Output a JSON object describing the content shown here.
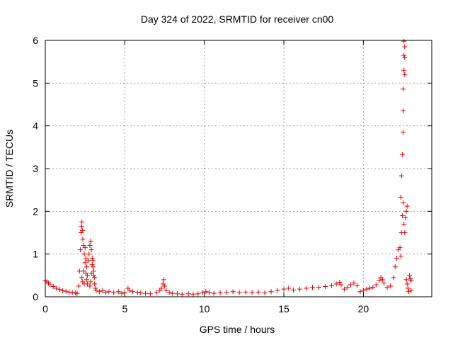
{
  "chart_data": {
    "type": "scatter",
    "title": "Day 324 of 2022, SRMTID for receiver cn00",
    "xlabel": "GPS time / hours",
    "ylabel": "SRMTID / TECUs",
    "xlim": [
      0,
      24.3
    ],
    "ylim": [
      0,
      6
    ],
    "xticks": [
      "0",
      "5",
      "10",
      "15",
      "20"
    ],
    "yticks": [
      "0",
      "1",
      "2",
      "3",
      "4",
      "5",
      "6"
    ],
    "grid": true,
    "marker": "plus",
    "series": [
      {
        "color": "#e00000",
        "points": [
          [
            0.0,
            0.38
          ],
          [
            0.1,
            0.35
          ],
          [
            0.2,
            0.32
          ],
          [
            0.3,
            0.28
          ],
          [
            0.5,
            0.24
          ],
          [
            0.7,
            0.2
          ],
          [
            0.9,
            0.17
          ],
          [
            1.1,
            0.14
          ],
          [
            1.3,
            0.13
          ],
          [
            1.5,
            0.11
          ],
          [
            1.7,
            0.1
          ],
          [
            1.9,
            0.09
          ],
          [
            2.0,
            0.08
          ],
          [
            2.1,
            0.25
          ],
          [
            2.15,
            0.6
          ],
          [
            2.2,
            1.1
          ],
          [
            2.25,
            1.5
          ],
          [
            2.28,
            1.65
          ],
          [
            2.3,
            1.75
          ],
          [
            2.33,
            1.55
          ],
          [
            2.36,
            1.35
          ],
          [
            2.4,
            1.2
          ],
          [
            2.45,
            1.0
          ],
          [
            2.5,
            0.8
          ],
          [
            2.55,
            0.55
          ],
          [
            2.6,
            0.4
          ],
          [
            2.65,
            0.3
          ],
          [
            2.3,
            0.45
          ],
          [
            2.35,
            0.35
          ],
          [
            2.4,
            0.6
          ],
          [
            2.45,
            0.3
          ],
          [
            2.5,
            1.15
          ],
          [
            2.55,
            0.9
          ],
          [
            2.6,
            0.7
          ],
          [
            2.65,
            0.5
          ],
          [
            2.7,
            0.85
          ],
          [
            2.75,
            1.0
          ],
          [
            2.8,
            1.2
          ],
          [
            2.85,
            1.3
          ],
          [
            2.9,
            1.1
          ],
          [
            2.95,
            0.9
          ],
          [
            3.0,
            0.7
          ],
          [
            3.05,
            0.5
          ],
          [
            3.1,
            0.3
          ],
          [
            3.15,
            0.2
          ],
          [
            2.8,
            0.25
          ],
          [
            2.85,
            0.35
          ],
          [
            2.9,
            0.55
          ],
          [
            2.95,
            0.75
          ],
          [
            3.0,
            0.85
          ],
          [
            3.05,
            0.6
          ],
          [
            3.1,
            0.45
          ],
          [
            3.2,
            0.15
          ],
          [
            3.4,
            0.12
          ],
          [
            3.6,
            0.14
          ],
          [
            3.8,
            0.1
          ],
          [
            4.0,
            0.12
          ],
          [
            4.3,
            0.1
          ],
          [
            4.6,
            0.12
          ],
          [
            4.8,
            0.08
          ],
          [
            5.0,
            0.1
          ],
          [
            5.2,
            0.2
          ],
          [
            5.3,
            0.15
          ],
          [
            5.5,
            0.12
          ],
          [
            5.8,
            0.1
          ],
          [
            6.0,
            0.09
          ],
          [
            6.3,
            0.08
          ],
          [
            6.6,
            0.07
          ],
          [
            7.0,
            0.1
          ],
          [
            7.2,
            0.15
          ],
          [
            7.3,
            0.2
          ],
          [
            7.4,
            0.3
          ],
          [
            7.45,
            0.4
          ],
          [
            7.5,
            0.25
          ],
          [
            7.6,
            0.15
          ],
          [
            7.8,
            0.1
          ],
          [
            8.0,
            0.08
          ],
          [
            8.3,
            0.07
          ],
          [
            8.6,
            0.06
          ],
          [
            9.0,
            0.07
          ],
          [
            9.3,
            0.06
          ],
          [
            9.6,
            0.07
          ],
          [
            9.9,
            0.1
          ],
          [
            10.1,
            0.12
          ],
          [
            10.3,
            0.1
          ],
          [
            10.6,
            0.08
          ],
          [
            11.0,
            0.09
          ],
          [
            11.4,
            0.1
          ],
          [
            11.8,
            0.12
          ],
          [
            12.2,
            0.1
          ],
          [
            12.6,
            0.11
          ],
          [
            13.0,
            0.1
          ],
          [
            13.4,
            0.11
          ],
          [
            13.8,
            0.09
          ],
          [
            14.2,
            0.12
          ],
          [
            14.6,
            0.15
          ],
          [
            15.0,
            0.18
          ],
          [
            15.3,
            0.2
          ],
          [
            15.6,
            0.16
          ],
          [
            16.0,
            0.18
          ],
          [
            16.4,
            0.2
          ],
          [
            16.8,
            0.22
          ],
          [
            17.2,
            0.22
          ],
          [
            17.6,
            0.24
          ],
          [
            18.0,
            0.26
          ],
          [
            18.3,
            0.3
          ],
          [
            18.5,
            0.34
          ],
          [
            18.6,
            0.28
          ],
          [
            18.8,
            0.18
          ],
          [
            19.0,
            0.22
          ],
          [
            19.2,
            0.28
          ],
          [
            19.4,
            0.32
          ],
          [
            19.6,
            0.26
          ],
          [
            19.8,
            0.12
          ],
          [
            20.0,
            0.15
          ],
          [
            20.2,
            0.18
          ],
          [
            20.4,
            0.2
          ],
          [
            20.6,
            0.22
          ],
          [
            20.8,
            0.28
          ],
          [
            21.0,
            0.38
          ],
          [
            21.1,
            0.45
          ],
          [
            21.2,
            0.4
          ],
          [
            21.3,
            0.32
          ],
          [
            21.5,
            0.22
          ],
          [
            21.7,
            0.25
          ],
          [
            21.9,
            0.45
          ],
          [
            22.0,
            0.7
          ],
          [
            22.1,
            0.9
          ],
          [
            22.2,
            1.1
          ],
          [
            22.3,
            1.15
          ],
          [
            22.35,
            0.95
          ],
          [
            22.4,
            1.5
          ],
          [
            22.45,
            1.9
          ],
          [
            22.5,
            2.2
          ],
          [
            22.55,
            1.7
          ],
          [
            22.6,
            1.5
          ],
          [
            22.65,
            1.85
          ],
          [
            22.7,
            2.0
          ],
          [
            22.75,
            2.12
          ],
          [
            22.35,
            2.33
          ],
          [
            22.4,
            2.83
          ],
          [
            22.45,
            3.33
          ],
          [
            22.5,
            3.85
          ],
          [
            22.5,
            4.35
          ],
          [
            22.5,
            4.86
          ],
          [
            22.55,
            5.3
          ],
          [
            22.6,
            5.2
          ],
          [
            22.6,
            5.6
          ],
          [
            22.55,
            5.65
          ],
          [
            22.6,
            5.85
          ],
          [
            22.55,
            5.98
          ],
          [
            22.7,
            0.4
          ],
          [
            22.75,
            0.3
          ],
          [
            22.8,
            0.2
          ],
          [
            22.85,
            0.12
          ],
          [
            22.9,
            0.5
          ],
          [
            22.95,
            0.42
          ],
          [
            23.0,
            0.38
          ],
          [
            23.0,
            0.15
          ]
        ]
      }
    ]
  }
}
